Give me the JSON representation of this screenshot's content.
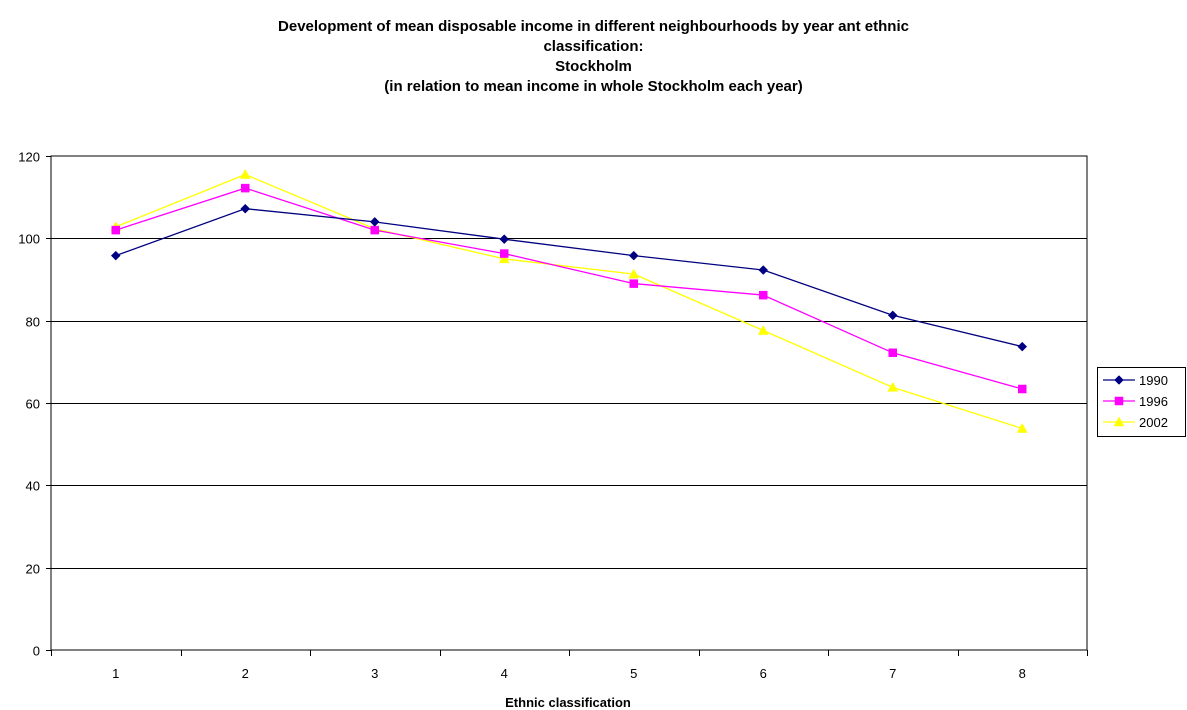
{
  "chart_data": {
    "type": "line",
    "title_lines": [
      "Development of mean disposable income in different neighbourhoods by year ant ethnic",
      "classification:",
      "Stockholm",
      "(in relation to mean income in whole Stockholm each year)"
    ],
    "xlabel": "Ethnic classification",
    "ylabel": "",
    "categories": [
      "1",
      "2",
      "3",
      "4",
      "5",
      "6",
      "7",
      "8"
    ],
    "ylim": [
      0,
      120
    ],
    "yticks": [
      0,
      20,
      40,
      60,
      80,
      100,
      120
    ],
    "grid": "horizontal",
    "legend_position": "right",
    "series": [
      {
        "name": "1990",
        "color": "#000080",
        "marker": "diamond",
        "values": [
          95.8,
          107.2,
          104.0,
          99.8,
          95.8,
          92.3,
          81.3,
          73.7
        ]
      },
      {
        "name": "1996",
        "color": "#FF00FF",
        "marker": "square",
        "values": [
          102.0,
          112.2,
          102.0,
          96.3,
          89.0,
          86.2,
          72.2,
          63.4
        ]
      },
      {
        "name": "2002",
        "color": "#FFFF00",
        "marker": "triangle",
        "values": [
          102.8,
          115.5,
          102.3,
          95.0,
          91.3,
          77.6,
          63.8,
          53.8
        ]
      }
    ]
  }
}
